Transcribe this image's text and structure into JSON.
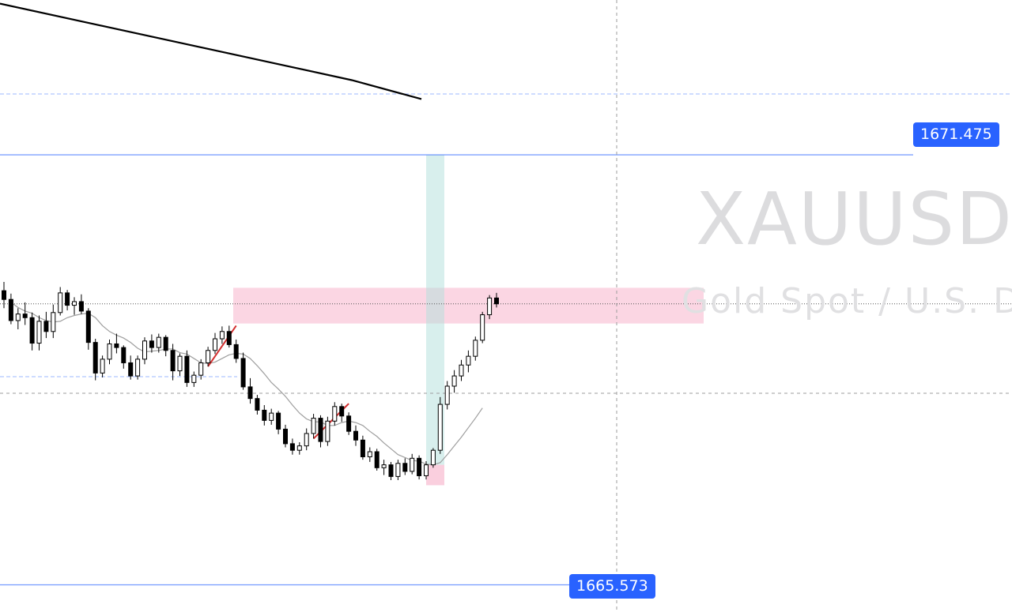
{
  "watermark": {
    "symbol": "XAUUSD,",
    "description": "Gold Spot / U.S. Do"
  },
  "price_labels": {
    "upper": "1671.475",
    "lower": "1665.573"
  },
  "colors": {
    "accent": "#2962ff",
    "bull_candle": "#ffffff",
    "bear_candle": "#000000",
    "moving_average": "#9e9e9e",
    "zone_pink": "#f8bbd0",
    "zone_green": "#b2dfdb",
    "trendline": "#000000",
    "impulse_lines": "#d32f2f"
  },
  "chart_data": {
    "type": "candlestick",
    "symbol": "XAUUSD",
    "ylim": [
      1665.2,
      1673.6
    ],
    "levels": [
      1671.475,
      1665.573
    ],
    "candles": [
      [
        1669.61,
        1669.73,
        1669.37,
        1669.49
      ],
      [
        1669.49,
        1669.57,
        1669.15,
        1669.2
      ],
      [
        1669.2,
        1669.37,
        1669.08,
        1669.29
      ],
      [
        1669.29,
        1669.45,
        1669.14,
        1669.24
      ],
      [
        1669.24,
        1669.31,
        1668.79,
        1668.89
      ],
      [
        1668.89,
        1669.27,
        1668.79,
        1669.19
      ],
      [
        1669.19,
        1669.32,
        1668.96,
        1669.05
      ],
      [
        1669.05,
        1669.42,
        1668.96,
        1669.31
      ],
      [
        1669.31,
        1669.66,
        1669.27,
        1669.58
      ],
      [
        1669.58,
        1669.62,
        1669.34,
        1669.41
      ],
      [
        1669.41,
        1669.52,
        1669.28,
        1669.46
      ],
      [
        1669.46,
        1669.56,
        1669.29,
        1669.33
      ],
      [
        1669.33,
        1669.37,
        1668.8,
        1668.9
      ],
      [
        1668.9,
        1668.95,
        1668.38,
        1668.48
      ],
      [
        1668.48,
        1668.72,
        1668.42,
        1668.67
      ],
      [
        1668.67,
        1668.94,
        1668.6,
        1668.88
      ],
      [
        1668.88,
        1669.02,
        1668.75,
        1668.83
      ],
      [
        1668.83,
        1668.86,
        1668.54,
        1668.62
      ],
      [
        1668.62,
        1668.72,
        1668.39,
        1668.44
      ],
      [
        1668.44,
        1668.72,
        1668.39,
        1668.67
      ],
      [
        1668.67,
        1668.97,
        1668.6,
        1668.92
      ],
      [
        1668.92,
        1669.01,
        1668.76,
        1668.83
      ],
      [
        1668.83,
        1669.02,
        1668.76,
        1668.97
      ],
      [
        1668.97,
        1669.0,
        1668.71,
        1668.79
      ],
      [
        1668.79,
        1668.88,
        1668.38,
        1668.51
      ],
      [
        1668.51,
        1668.75,
        1668.44,
        1668.71
      ],
      [
        1668.71,
        1668.79,
        1668.29,
        1668.35
      ],
      [
        1668.35,
        1668.5,
        1668.29,
        1668.45
      ],
      [
        1668.45,
        1668.67,
        1668.39,
        1668.62
      ],
      [
        1668.62,
        1668.84,
        1668.57,
        1668.79
      ],
      [
        1668.79,
        1669.03,
        1668.74,
        1668.95
      ],
      [
        1668.95,
        1669.12,
        1668.88,
        1669.05
      ],
      [
        1669.05,
        1669.13,
        1668.83,
        1668.87
      ],
      [
        1668.87,
        1668.94,
        1668.62,
        1668.68
      ],
      [
        1668.68,
        1668.76,
        1668.25,
        1668.29
      ],
      [
        1668.29,
        1668.41,
        1668.06,
        1668.13
      ],
      [
        1668.13,
        1668.18,
        1667.91,
        1667.97
      ],
      [
        1667.97,
        1668.04,
        1667.76,
        1667.83
      ],
      [
        1667.83,
        1667.99,
        1667.77,
        1667.93
      ],
      [
        1667.93,
        1667.96,
        1667.64,
        1667.71
      ],
      [
        1667.71,
        1667.77,
        1667.46,
        1667.51
      ],
      [
        1667.51,
        1667.58,
        1667.36,
        1667.42
      ],
      [
        1667.42,
        1667.53,
        1667.36,
        1667.48
      ],
      [
        1667.48,
        1667.72,
        1667.42,
        1667.65
      ],
      [
        1667.65,
        1667.92,
        1667.58,
        1667.86
      ],
      [
        1667.86,
        1667.9,
        1667.46,
        1667.54
      ],
      [
        1667.54,
        1667.88,
        1667.48,
        1667.82
      ],
      [
        1667.82,
        1668.08,
        1667.76,
        1668.02
      ],
      [
        1668.02,
        1668.06,
        1667.81,
        1667.89
      ],
      [
        1667.89,
        1667.94,
        1667.63,
        1667.68
      ],
      [
        1667.68,
        1667.76,
        1667.48,
        1667.56
      ],
      [
        1667.56,
        1667.62,
        1667.29,
        1667.33
      ],
      [
        1667.33,
        1667.46,
        1667.26,
        1667.4
      ],
      [
        1667.4,
        1667.44,
        1667.14,
        1667.18
      ],
      [
        1667.18,
        1667.29,
        1667.08,
        1667.22
      ],
      [
        1667.22,
        1667.26,
        1667.01,
        1667.06
      ],
      [
        1667.06,
        1667.29,
        1667.01,
        1667.24
      ],
      [
        1667.24,
        1667.31,
        1667.08,
        1667.13
      ],
      [
        1667.13,
        1667.37,
        1667.09,
        1667.31
      ],
      [
        1667.31,
        1667.35,
        1667.02,
        1667.07
      ],
      [
        1667.07,
        1667.27,
        1667.02,
        1667.22
      ],
      [
        1667.22,
        1667.45,
        1667.18,
        1667.42
      ],
      [
        1667.42,
        1668.15,
        1667.37,
        1668.05
      ],
      [
        1668.05,
        1668.37,
        1667.98,
        1668.3
      ],
      [
        1668.3,
        1668.52,
        1668.21,
        1668.44
      ],
      [
        1668.44,
        1668.66,
        1668.37,
        1668.59
      ],
      [
        1668.59,
        1668.79,
        1668.49,
        1668.71
      ],
      [
        1668.71,
        1668.98,
        1668.65,
        1668.93
      ],
      [
        1668.93,
        1669.32,
        1668.89,
        1669.28
      ],
      [
        1669.28,
        1669.55,
        1669.22,
        1669.51
      ],
      [
        1669.51,
        1669.58,
        1669.38,
        1669.43
      ]
    ],
    "moving_average": [
      1669.45,
      1669.38,
      1669.33,
      1669.3,
      1669.24,
      1669.2,
      1669.18,
      1669.19,
      1669.24,
      1669.27,
      1669.29,
      1669.3,
      1669.24,
      1669.13,
      1669.05,
      1669.0,
      1668.96,
      1668.9,
      1668.82,
      1668.77,
      1668.78,
      1668.79,
      1668.81,
      1668.81,
      1668.76,
      1668.74,
      1668.68,
      1668.62,
      1668.61,
      1668.63,
      1668.68,
      1668.73,
      1668.75,
      1668.74,
      1668.68,
      1668.58,
      1668.47,
      1668.35,
      1668.26,
      1668.16,
      1668.04,
      1667.93,
      1667.85,
      1667.81,
      1667.81,
      1667.76,
      1667.76,
      1667.8,
      1667.82,
      1667.8,
      1667.76,
      1667.68,
      1667.61,
      1667.52,
      1667.44,
      1667.36,
      1667.32,
      1667.28,
      1667.27,
      1667.23,
      1667.22,
      1667.25,
      1667.36,
      1667.48,
      1667.6,
      1667.73,
      1667.86,
      1668.0
    ],
    "trendline": [
      [
        1673.55,
        0
      ],
      [
        1672.5,
        26
      ],
      [
        1672.24,
        36
      ]
    ],
    "zones": {
      "supply": [
        1669.16,
        1669.65
      ],
      "long_profit": [
        1667.22,
        1671.475
      ],
      "long_loss": [
        1666.94,
        1667.22
      ]
    }
  }
}
